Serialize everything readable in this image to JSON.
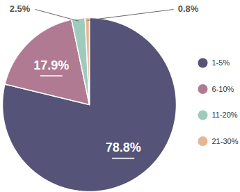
{
  "chart_data": {
    "type": "pie",
    "categories": [
      "1-5%",
      "6-10%",
      "11-20%",
      "21-30%"
    ],
    "values": [
      78.8,
      17.9,
      2.5,
      0.8
    ],
    "value_labels": [
      "78.8%",
      "17.9%",
      "2.5%",
      "0.8%"
    ],
    "colors": [
      "#555377",
      "#b07a93",
      "#9ecbbe",
      "#e9b692"
    ],
    "data_labels": true,
    "legend": "right"
  }
}
